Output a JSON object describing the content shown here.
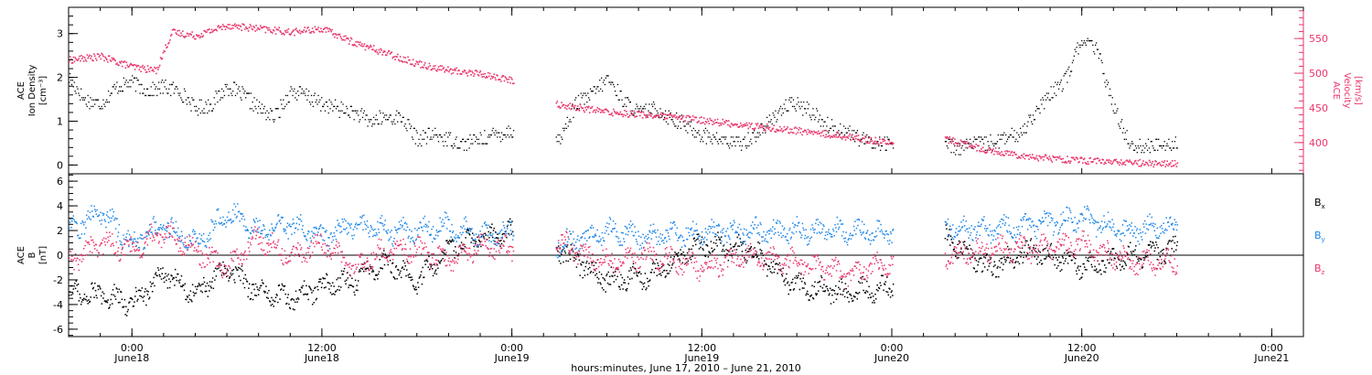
{
  "colors": {
    "ink": "#000000",
    "density": "#000000",
    "velocity": "#e8356a",
    "bx": "#000000",
    "by": "#1f87e8",
    "bz": "#e8356a"
  },
  "axis": {
    "xlabel": "hours:minutes, June 17, 2010 – June 21, 2010",
    "start": "2010-06-17T20:00",
    "end": "2010-06-21T02:00",
    "ticks": [
      {
        "t": "2010-06-18T00:00",
        "time": "0:00",
        "date": "June18"
      },
      {
        "t": "2010-06-18T12:00",
        "time": "12:00",
        "date": "June18"
      },
      {
        "t": "2010-06-19T00:00",
        "time": "0:00",
        "date": "June19"
      },
      {
        "t": "2010-06-19T12:00",
        "time": "12:00",
        "date": "June19"
      },
      {
        "t": "2010-06-20T00:00",
        "time": "0:00",
        "date": "June20"
      },
      {
        "t": "2010-06-20T12:00",
        "time": "12:00",
        "date": "June20"
      },
      {
        "t": "2010-06-21T00:00",
        "time": "0:00",
        "date": "June21"
      }
    ]
  },
  "chart_data": [
    {
      "type": "scatter",
      "ylabel": [
        "ACE",
        "Ion Density",
        "[cm⁻³]"
      ],
      "ylim": [
        -0.2,
        3.6
      ],
      "yticks": [
        "0",
        "1",
        "2",
        "3"
      ],
      "y2label": [
        "ACE",
        "Velocity",
        "[km/s]"
      ],
      "y2lim": [
        355,
        595
      ],
      "y2ticks": [
        "400",
        "450",
        "500",
        "550"
      ],
      "grid": false,
      "gaps": [
        [
          "2010-06-19T00:05",
          "2010-06-19T02:45"
        ],
        [
          "2010-06-20T00:05",
          "2010-06-20T03:20"
        ]
      ],
      "series": [
        {
          "key": "density",
          "axis": "left",
          "colorKey": "density",
          "x": [
            "2010-06-17T20:00",
            "2010-06-17T21:00",
            "2010-06-17T22:00",
            "2010-06-17T23:00",
            "2010-06-18T00:00",
            "2010-06-18T01:00",
            "2010-06-18T02:00",
            "2010-06-18T03:00",
            "2010-06-18T04:00",
            "2010-06-18T05:00",
            "2010-06-18T06:00",
            "2010-06-18T07:00",
            "2010-06-18T08:00",
            "2010-06-18T09:00",
            "2010-06-18T10:00",
            "2010-06-18T11:00",
            "2010-06-18T12:00",
            "2010-06-18T13:00",
            "2010-06-18T14:00",
            "2010-06-18T15:00",
            "2010-06-18T16:00",
            "2010-06-18T17:00",
            "2010-06-18T18:00",
            "2010-06-18T19:00",
            "2010-06-18T20:00",
            "2010-06-18T21:00",
            "2010-06-18T22:00",
            "2010-06-18T23:00",
            "2010-06-19T00:00",
            "2010-06-19T03:00",
            "2010-06-19T04:00",
            "2010-06-19T05:00",
            "2010-06-19T06:00",
            "2010-06-19T07:00",
            "2010-06-19T08:00",
            "2010-06-19T09:00",
            "2010-06-19T10:00",
            "2010-06-19T11:00",
            "2010-06-19T12:00",
            "2010-06-19T13:00",
            "2010-06-19T14:00",
            "2010-06-19T15:00",
            "2010-06-19T16:00",
            "2010-06-19T17:00",
            "2010-06-19T18:00",
            "2010-06-19T19:00",
            "2010-06-19T20:00",
            "2010-06-19T21:00",
            "2010-06-19T22:00",
            "2010-06-19T23:00",
            "2010-06-20T00:00",
            "2010-06-20T03:30",
            "2010-06-20T04:00",
            "2010-06-20T05:00",
            "2010-06-20T06:00",
            "2010-06-20T07:00",
            "2010-06-20T08:00",
            "2010-06-20T09:00",
            "2010-06-20T10:00",
            "2010-06-20T11:00",
            "2010-06-20T12:00",
            "2010-06-20T13:00",
            "2010-06-20T14:00",
            "2010-06-20T15:00",
            "2010-06-20T16:00",
            "2010-06-20T17:00",
            "2010-06-20T18:00"
          ],
          "y": [
            2.0,
            1.5,
            1.4,
            1.8,
            1.9,
            1.7,
            1.8,
            1.7,
            1.3,
            1.4,
            1.8,
            1.6,
            1.3,
            1.1,
            1.7,
            1.6,
            1.4,
            1.3,
            1.2,
            1.0,
            1.1,
            1.1,
            0.6,
            0.7,
            0.6,
            0.5,
            0.6,
            0.7,
            0.8,
            0.6,
            1.4,
            1.6,
            2.0,
            1.5,
            1.2,
            1.3,
            1.1,
            0.9,
            0.7,
            0.6,
            0.5,
            0.6,
            0.9,
            1.3,
            1.4,
            1.2,
            0.9,
            0.8,
            0.6,
            0.5,
            0.5,
            0.5,
            0.4,
            0.5,
            0.5,
            0.6,
            0.7,
            1.2,
            1.6,
            2.0,
            2.9,
            2.6,
            1.3,
            0.5,
            0.4,
            0.5,
            0.5
          ]
        },
        {
          "key": "velocity",
          "axis": "right",
          "colorKey": "velocity",
          "x": [
            "2010-06-17T20:00",
            "2010-06-17T22:00",
            "2010-06-18T00:00",
            "2010-06-18T01:30",
            "2010-06-18T02:30",
            "2010-06-18T04:00",
            "2010-06-18T06:00",
            "2010-06-18T08:00",
            "2010-06-18T10:00",
            "2010-06-18T12:00",
            "2010-06-18T14:00",
            "2010-06-18T16:00",
            "2010-06-18T18:00",
            "2010-06-18T20:00",
            "2010-06-18T22:00",
            "2010-06-19T00:00",
            "2010-06-19T03:00",
            "2010-06-19T06:00",
            "2010-06-19T09:00",
            "2010-06-19T12:00",
            "2010-06-19T15:00",
            "2010-06-19T18:00",
            "2010-06-19T21:00",
            "2010-06-20T00:00",
            "2010-06-20T03:30",
            "2010-06-20T06:00",
            "2010-06-20T09:00",
            "2010-06-20T12:00",
            "2010-06-20T15:00",
            "2010-06-20T18:00"
          ],
          "y": [
            520,
            525,
            510,
            505,
            560,
            555,
            570,
            565,
            560,
            565,
            545,
            530,
            515,
            505,
            500,
            490,
            455,
            445,
            440,
            433,
            425,
            418,
            410,
            400,
            405,
            390,
            380,
            375,
            372,
            370
          ]
        }
      ]
    },
    {
      "type": "scatter",
      "ylabel": [
        "ACE",
        "B",
        "[nT]"
      ],
      "ylim": [
        -6.6,
        6.6
      ],
      "yticks": [
        "-6",
        "-4",
        "-2",
        "0",
        "2",
        "4",
        "6"
      ],
      "grid": false,
      "legend": "right",
      "legend_entries": [
        {
          "base": "B",
          "sub": "x",
          "colorKey": "bx"
        },
        {
          "base": "B",
          "sub": "y",
          "colorKey": "by"
        },
        {
          "base": "B",
          "sub": "z",
          "colorKey": "bz"
        }
      ],
      "gaps": [
        [
          "2010-06-19T00:05",
          "2010-06-19T02:45"
        ],
        [
          "2010-06-20T00:05",
          "2010-06-20T03:20"
        ]
      ],
      "series": [
        {
          "key": "bx",
          "colorKey": "bx",
          "x": [
            "2010-06-17T20:00",
            "2010-06-17T22:00",
            "2010-06-18T00:00",
            "2010-06-18T02:00",
            "2010-06-18T04:00",
            "2010-06-18T06:00",
            "2010-06-18T08:00",
            "2010-06-18T10:00",
            "2010-06-18T12:00",
            "2010-06-18T14:00",
            "2010-06-18T16:00",
            "2010-06-18T18:00",
            "2010-06-18T20:00",
            "2010-06-18T22:00",
            "2010-06-19T00:00",
            "2010-06-19T03:00",
            "2010-06-19T06:00",
            "2010-06-19T09:00",
            "2010-06-19T12:00",
            "2010-06-19T15:00",
            "2010-06-19T18:00",
            "2010-06-19T21:00",
            "2010-06-20T00:00",
            "2010-06-20T03:30",
            "2010-06-20T06:00",
            "2010-06-20T09:00",
            "2010-06-20T12:00",
            "2010-06-20T15:00",
            "2010-06-20T18:00"
          ],
          "y": [
            -3.0,
            -3.2,
            -3.8,
            -1.5,
            -3.0,
            -1.0,
            -3.0,
            -3.5,
            -2.5,
            -2.0,
            -0.5,
            -2.0,
            0.5,
            1.5,
            2.0,
            0.5,
            -2.0,
            -1.5,
            1.0,
            0.5,
            -2.5,
            -3.0,
            -2.5,
            1.5,
            -1.0,
            0.5,
            -1.0,
            0.0,
            0.5
          ]
        },
        {
          "key": "by",
          "colorKey": "by",
          "x": [
            "2010-06-17T20:00",
            "2010-06-17T22:00",
            "2010-06-18T00:00",
            "2010-06-18T02:00",
            "2010-06-18T04:00",
            "2010-06-18T06:00",
            "2010-06-18T08:00",
            "2010-06-18T10:00",
            "2010-06-18T12:00",
            "2010-06-18T14:00",
            "2010-06-18T16:00",
            "2010-06-18T18:00",
            "2010-06-18T20:00",
            "2010-06-18T22:00",
            "2010-06-19T00:00",
            "2010-06-19T03:00",
            "2010-06-19T06:00",
            "2010-06-19T09:00",
            "2010-06-19T12:00",
            "2010-06-19T15:00",
            "2010-06-19T18:00",
            "2010-06-19T21:00",
            "2010-06-20T00:00",
            "2010-06-20T03:30",
            "2010-06-20T06:00",
            "2010-06-20T09:00",
            "2010-06-20T12:00",
            "2010-06-20T15:00",
            "2010-06-20T18:00"
          ],
          "y": [
            2.0,
            3.5,
            1.0,
            2.5,
            1.0,
            3.5,
            2.0,
            2.5,
            1.5,
            2.5,
            2.0,
            2.0,
            2.5,
            1.5,
            2.0,
            1.0,
            2.0,
            1.5,
            2.0,
            2.0,
            2.0,
            2.0,
            2.0,
            2.5,
            2.0,
            2.5,
            3.0,
            2.0,
            2.5
          ]
        },
        {
          "key": "bz",
          "colorKey": "bz",
          "x": [
            "2010-06-17T20:00",
            "2010-06-17T22:00",
            "2010-06-18T00:00",
            "2010-06-18T02:00",
            "2010-06-18T04:00",
            "2010-06-18T06:00",
            "2010-06-18T08:00",
            "2010-06-18T10:00",
            "2010-06-18T12:00",
            "2010-06-18T14:00",
            "2010-06-18T16:00",
            "2010-06-18T18:00",
            "2010-06-18T20:00",
            "2010-06-18T22:00",
            "2010-06-19T00:00",
            "2010-06-19T03:00",
            "2010-06-19T06:00",
            "2010-06-19T09:00",
            "2010-06-19T12:00",
            "2010-06-19T15:00",
            "2010-06-19T18:00",
            "2010-06-19T21:00",
            "2010-06-20T00:00",
            "2010-06-20T03:30",
            "2010-06-20T06:00",
            "2010-06-20T09:00",
            "2010-06-20T12:00",
            "2010-06-20T15:00",
            "2010-06-20T18:00"
          ],
          "y": [
            -0.5,
            1.0,
            0.5,
            2.0,
            0.5,
            -1.0,
            1.5,
            0.0,
            1.0,
            -1.0,
            0.5,
            0.5,
            -0.5,
            1.0,
            0.5,
            1.0,
            -0.5,
            0.0,
            -1.0,
            0.0,
            -0.5,
            -1.5,
            -0.5,
            0.0,
            0.5,
            0.5,
            1.0,
            -0.5,
            -0.5
          ]
        }
      ]
    }
  ]
}
